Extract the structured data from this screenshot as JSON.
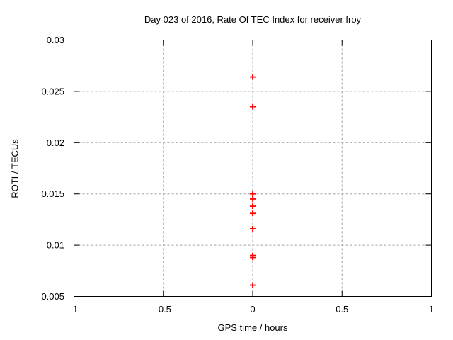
{
  "chart_data": {
    "type": "scatter",
    "title": "Day 023 of 2016, Rate Of TEC Index for receiver froy",
    "xlabel": "GPS time / hours",
    "ylabel": "ROTI / TECUs",
    "xlim": [
      -1,
      1
    ],
    "ylim": [
      0.005,
      0.03
    ],
    "x_ticks": [
      -1,
      -0.5,
      0,
      0.5,
      1
    ],
    "x_tick_labels": [
      "-1",
      "-0.5",
      "0",
      "0.5",
      "1"
    ],
    "y_ticks": [
      0.005,
      0.01,
      0.015,
      0.02,
      0.025,
      0.03
    ],
    "y_tick_labels": [
      "0.005",
      "0.01",
      "0.015",
      "0.02",
      "0.025",
      "0.03"
    ],
    "grid": true,
    "legend": "none",
    "series": [
      {
        "name": "ROTI",
        "marker": "plus",
        "color": "#ff0000",
        "points": [
          {
            "x": 0,
            "y": 0.0264
          },
          {
            "x": 0,
            "y": 0.0235
          },
          {
            "x": 0,
            "y": 0.015
          },
          {
            "x": 0,
            "y": 0.0145
          },
          {
            "x": 0,
            "y": 0.0138
          },
          {
            "x": 0,
            "y": 0.0131
          },
          {
            "x": 0,
            "y": 0.0116
          },
          {
            "x": 0,
            "y": 0.009
          },
          {
            "x": 0,
            "y": 0.0088
          },
          {
            "x": 0,
            "y": 0.0061
          }
        ]
      }
    ],
    "colors": {
      "marker": "#ff0000",
      "grid": "#a0a0a0",
      "border": "#000000",
      "text": "#000000",
      "background": "#ffffff"
    }
  }
}
